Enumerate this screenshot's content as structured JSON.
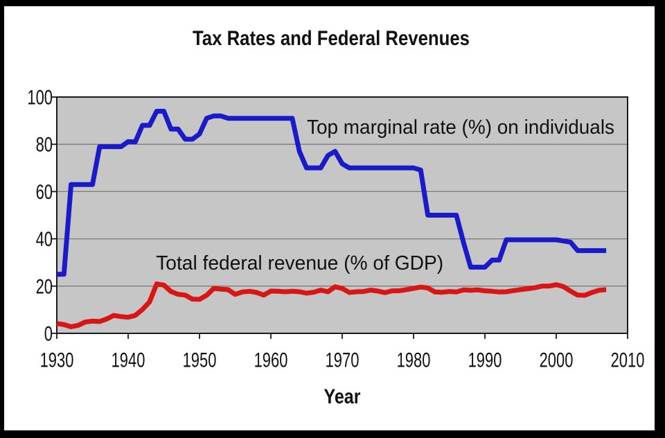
{
  "frame": {
    "border_color": "#000000",
    "background": "#ffffff"
  },
  "chart_data": {
    "type": "line",
    "title": "Tax Rates and Federal Revenues",
    "xlabel": "Year",
    "ylabel": "",
    "xlim": [
      1930,
      2010
    ],
    "ylim": [
      0,
      100
    ],
    "x_ticks": [
      "1930",
      "1940",
      "1950",
      "1960",
      "1970",
      "1980",
      "1990",
      "2000",
      "2010"
    ],
    "y_ticks": [
      "0",
      "20",
      "40",
      "60",
      "80",
      "100"
    ],
    "grid": "horizontal gridlines only",
    "legend_position": "inline text annotations inside plot",
    "plot_background": "#c6c6c6",
    "gridline_color": "#7a7a7a",
    "axis_color": "#1a1a1a",
    "x_years": [
      1930,
      1931,
      1932,
      1933,
      1934,
      1935,
      1936,
      1937,
      1938,
      1939,
      1940,
      1941,
      1942,
      1943,
      1944,
      1945,
      1946,
      1947,
      1948,
      1949,
      1950,
      1951,
      1952,
      1953,
      1954,
      1955,
      1956,
      1957,
      1958,
      1959,
      1960,
      1961,
      1962,
      1963,
      1964,
      1965,
      1966,
      1967,
      1968,
      1969,
      1970,
      1971,
      1972,
      1973,
      1974,
      1975,
      1976,
      1977,
      1978,
      1979,
      1980,
      1981,
      1982,
      1983,
      1984,
      1985,
      1986,
      1987,
      1988,
      1989,
      1990,
      1991,
      1992,
      1993,
      1994,
      1995,
      1996,
      1997,
      1998,
      1999,
      2000,
      2001,
      2002,
      2003,
      2004,
      2005,
      2006,
      2007
    ],
    "series": [
      {
        "name": "Top marginal rate (%) on individuals",
        "color": "#1a1ac8",
        "values": [
          25,
          25,
          63,
          63,
          63,
          63,
          79,
          79,
          79,
          79,
          81.1,
          81,
          88,
          88,
          94,
          94,
          86.45,
          86.45,
          82.13,
          82.13,
          84.36,
          91,
          92,
          92,
          91,
          91,
          91,
          91,
          91,
          91,
          91,
          91,
          91,
          91,
          77,
          70,
          70,
          70,
          75.25,
          77,
          71.75,
          70,
          70,
          70,
          70,
          70,
          70,
          70,
          70,
          70,
          70,
          69.13,
          50,
          50,
          50,
          50,
          50,
          38.5,
          28,
          28,
          28,
          31,
          31,
          39.6,
          39.6,
          39.6,
          39.6,
          39.6,
          39.6,
          39.6,
          39.6,
          39.1,
          38.6,
          35,
          35,
          35,
          35,
          35
        ]
      },
      {
        "name": "Total federal revenue (% of GDP)",
        "color": "#d91616",
        "values": [
          4.2,
          3.7,
          2.8,
          3.4,
          4.8,
          5.2,
          5.0,
          6.1,
          7.6,
          7.1,
          6.8,
          7.6,
          10.1,
          13.3,
          20.9,
          20.4,
          17.7,
          16.5,
          16.2,
          14.5,
          14.4,
          16.1,
          19.0,
          18.7,
          18.5,
          16.5,
          17.5,
          17.8,
          17.3,
          16.2,
          17.9,
          17.8,
          17.6,
          17.8,
          17.6,
          17.0,
          17.4,
          18.3,
          17.6,
          19.7,
          19.0,
          17.3,
          17.6,
          17.7,
          18.3,
          17.9,
          17.2,
          18.0,
          18.0,
          18.5,
          19.0,
          19.6,
          19.2,
          17.5,
          17.4,
          17.7,
          17.5,
          18.4,
          18.2,
          18.4,
          18.0,
          17.8,
          17.5,
          17.6,
          18.1,
          18.5,
          18.9,
          19.3,
          20.0,
          20.0,
          20.6,
          19.8,
          17.9,
          16.2,
          16.1,
          17.3,
          18.2,
          18.5
        ]
      }
    ],
    "annotations": [
      {
        "text": "Top marginal rate (%) on individuals",
        "x_year": 1965.05,
        "value_baseline": 84.5
      },
      {
        "text": "Total federal revenue (% of GDP)",
        "x_year": 1943.9,
        "value_baseline": 27
      }
    ]
  }
}
